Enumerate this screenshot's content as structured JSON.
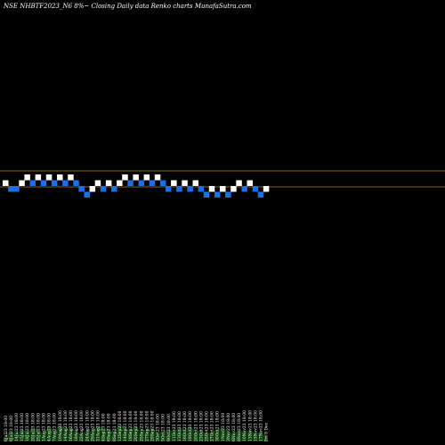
{
  "chart_data": {
    "type": "renko",
    "title": "NSE NHBTF2023_N6  8%~  Closing Daily data  Renko  charts MunafaSutra.com",
    "reference_lines": [
      {
        "label": "upper",
        "color": "#b8860b"
      },
      {
        "label": "lower",
        "color": "#b8860b"
      }
    ],
    "colors": {
      "up": "#ffffff",
      "down": "#1e6fe6",
      "background": "#000000",
      "volume": "#0b3d0b"
    },
    "bricks": [
      {
        "dir": "up",
        "level": 1
      },
      {
        "dir": "down",
        "level": 0
      },
      {
        "dir": "down",
        "level": 0
      },
      {
        "dir": "up",
        "level": 1
      },
      {
        "dir": "up",
        "level": 2
      },
      {
        "dir": "down",
        "level": 1
      },
      {
        "dir": "up",
        "level": 2
      },
      {
        "dir": "down",
        "level": 1
      },
      {
        "dir": "up",
        "level": 2
      },
      {
        "dir": "down",
        "level": 1
      },
      {
        "dir": "up",
        "level": 2
      },
      {
        "dir": "down",
        "level": 1
      },
      {
        "dir": "up",
        "level": 2
      },
      {
        "dir": "down",
        "level": 1
      },
      {
        "dir": "down",
        "level": 0
      },
      {
        "dir": "down",
        "level": -1
      },
      {
        "dir": "up",
        "level": 0
      },
      {
        "dir": "up",
        "level": 1
      },
      {
        "dir": "down",
        "level": 0
      },
      {
        "dir": "up",
        "level": 1
      },
      {
        "dir": "down",
        "level": 0
      },
      {
        "dir": "up",
        "level": 1
      },
      {
        "dir": "up",
        "level": 2
      },
      {
        "dir": "down",
        "level": 1
      },
      {
        "dir": "up",
        "level": 2
      },
      {
        "dir": "down",
        "level": 1
      },
      {
        "dir": "up",
        "level": 2
      },
      {
        "dir": "down",
        "level": 1
      },
      {
        "dir": "up",
        "level": 2
      },
      {
        "dir": "down",
        "level": 1
      },
      {
        "dir": "down",
        "level": 0
      },
      {
        "dir": "up",
        "level": 1
      },
      {
        "dir": "down",
        "level": 0
      },
      {
        "dir": "up",
        "level": 1
      },
      {
        "dir": "down",
        "level": 0
      },
      {
        "dir": "up",
        "level": 1
      },
      {
        "dir": "down",
        "level": 0
      },
      {
        "dir": "down",
        "level": -1
      },
      {
        "dir": "up",
        "level": 0
      },
      {
        "dir": "down",
        "level": -1
      },
      {
        "dir": "up",
        "level": 0
      },
      {
        "dir": "down",
        "level": -1
      },
      {
        "dir": "up",
        "level": 0
      },
      {
        "dir": "up",
        "level": 1
      },
      {
        "dir": "down",
        "level": 0
      },
      {
        "dir": "up",
        "level": 1
      },
      {
        "dir": "down",
        "level": 0
      },
      {
        "dir": "down",
        "level": -1
      },
      {
        "dir": "up",
        "level": 0
      }
    ],
    "x_tick_labels": [
      "6Jul23 18:00",
      "9Jul23 18:00",
      "14Jul23 18:00",
      "15Jul23 18:00",
      "18Jul23 18:00",
      "20Jul23 18:00",
      "25Jul23 18:00",
      "1Aug23 18:00",
      "4Aug23 18:00",
      "7Aug23 18:00",
      "10Aug23 18:00",
      "14Aug23 18:00",
      "16Aug23 18:00",
      "18Aug23 18:00",
      "22Aug23 18:00",
      "24Aug23 18:00",
      "29Aug23 18:00",
      "31Aug23 18:00",
      "4Sep23 18:00",
      "6Sep23 18:00",
      "8Sep23 18:00",
      "12Sep23 18:00",
      "14Sep23 18:00",
      "18Sep23 18:00",
      "20Sep23 18:00",
      "25Sep23 18:00",
      "27Sep23 18:00",
      "29Sep23 18:00",
      "3Oct23 18:00",
      "5Oct23 18:00",
      "9Oct23 18:00",
      "11Oct23 18:00",
      "13Oct23 18:00",
      "16Oct23 18:00",
      "18Oct23 18:00",
      "20Oct23 18:00",
      "23Oct23 18:00",
      "25Oct23 18:00",
      "27Oct23 18:00",
      "30Oct23 18:00",
      "1Nov23 18:00",
      "3Nov23 18:00",
      "6Nov23 18:00",
      "8Nov23 18:00",
      "10Nov23 18:00",
      "13Nov23 18:00",
      "15Nov23 18:00",
      "17Nov23 18:00",
      "Fri 8 Dec"
    ],
    "volumes": [
      0.3,
      0.5,
      0.4,
      0.6,
      0.5,
      0.7,
      0.6,
      0.4,
      0.8,
      0.5,
      0.9,
      0.6,
      0.7,
      0.5,
      0.4,
      0.6,
      0.5,
      0.8,
      0.7,
      0.6,
      0.5,
      0.9,
      0.7,
      0.6,
      0.8,
      0.5,
      0.6,
      0.7,
      0.4,
      0.5,
      0.6,
      0.5,
      0.7,
      0.6,
      0.8,
      0.5,
      0.6,
      0.4,
      0.5,
      0.6,
      0.7,
      0.5,
      0.4,
      0.6,
      0.5,
      0.6,
      0.4,
      0.5,
      0.3
    ]
  }
}
